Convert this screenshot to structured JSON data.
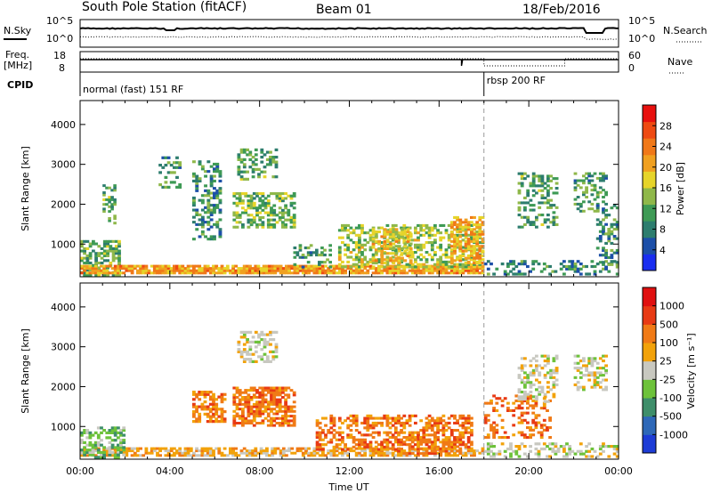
{
  "header": {
    "station": "South Pole Station (fitACF)",
    "beam": "Beam 01",
    "date": "18/Feb/2016"
  },
  "params": {
    "nsky_label": "N.Sky",
    "nsearch_label": "N.Search",
    "freq_label_1": "Freq.",
    "freq_label_2": "[MHz]",
    "nave_label": "Nave",
    "cpid_label": "CPID",
    "nsky_ticks": [
      "10^5",
      "10^0"
    ],
    "nsearch_ticks": [
      "10^5",
      "10^0"
    ],
    "freq_ticks": [
      "18",
      "8"
    ],
    "nave_ticks": [
      "60",
      "0"
    ],
    "modes": [
      {
        "label": "normal (fast) 151 RF",
        "start_hour": 0
      },
      {
        "label": "rbsp 200 RF",
        "start_hour": 18
      }
    ],
    "mode_change_hour": 18
  },
  "chart_data": [
    {
      "type": "heatmap",
      "name": "power",
      "ylabel": "Slant Range [km]",
      "xlabel": "",
      "x_range_hours": [
        0,
        24
      ],
      "ylim": [
        180,
        4600
      ],
      "yticks": [
        1000,
        2000,
        3000,
        4000
      ],
      "colorbar": {
        "label": "Power [dB]",
        "range": [
          0,
          32
        ],
        "ticks": [
          "4",
          "8",
          "12",
          "16",
          "20",
          "24",
          "28"
        ],
        "colors": [
          "#1a2ef0",
          "#1c4fa8",
          "#2d7d6e",
          "#3e9a55",
          "#8fb84a",
          "#e6d42a",
          "#f0a020",
          "#f07818",
          "#ee4a12",
          "#e8100e"
        ]
      },
      "regions": [
        {
          "t": [
            0.0,
            1.8
          ],
          "r": [
            200,
            1100
          ],
          "v": 12,
          "d": 0.6
        },
        {
          "t": [
            0.0,
            18.0
          ],
          "r": [
            250,
            480
          ],
          "v": 22,
          "d": 0.85
        },
        {
          "t": [
            1.0,
            1.6
          ],
          "r": [
            1500,
            2500
          ],
          "v": 11,
          "d": 0.4
        },
        {
          "t": [
            3.5,
            4.5
          ],
          "r": [
            2400,
            3200
          ],
          "v": 10,
          "d": 0.35
        },
        {
          "t": [
            5.0,
            6.3
          ],
          "r": [
            1100,
            3100
          ],
          "v": 9,
          "d": 0.4
        },
        {
          "t": [
            6.8,
            9.6
          ],
          "r": [
            1400,
            2300
          ],
          "v": 13,
          "d": 0.55
        },
        {
          "t": [
            7.0,
            8.8
          ],
          "r": [
            2600,
            3400
          ],
          "v": 11,
          "d": 0.4
        },
        {
          "t": [
            9.5,
            11.2
          ],
          "r": [
            400,
            1000
          ],
          "v": 10,
          "d": 0.3
        },
        {
          "t": [
            11.5,
            18.0
          ],
          "r": [
            400,
            1500
          ],
          "v": 15,
          "d": 0.45
        },
        {
          "t": [
            13.0,
            14.8
          ],
          "r": [
            500,
            1400
          ],
          "v": 19,
          "d": 0.5
        },
        {
          "t": [
            16.5,
            18.0
          ],
          "r": [
            500,
            1700
          ],
          "v": 21,
          "d": 0.6
        },
        {
          "t": [
            18.0,
            24.0
          ],
          "r": [
            220,
            600
          ],
          "v": 8,
          "d": 0.3
        },
        {
          "t": [
            19.5,
            21.3
          ],
          "r": [
            1400,
            2800
          ],
          "v": 11,
          "d": 0.4
        },
        {
          "t": [
            22.0,
            23.5
          ],
          "r": [
            1800,
            2800
          ],
          "v": 10,
          "d": 0.4
        },
        {
          "t": [
            23.0,
            24.0
          ],
          "r": [
            400,
            2000
          ],
          "v": 9,
          "d": 0.35
        }
      ]
    },
    {
      "type": "heatmap",
      "name": "velocity",
      "ylabel": "Slant Range [km]",
      "xlabel": "Time UT",
      "x_range_hours": [
        0,
        24
      ],
      "xticks": [
        "00:00",
        "04:00",
        "08:00",
        "12:00",
        "16:00",
        "20:00",
        "00:00"
      ],
      "ylim": [
        180,
        4600
      ],
      "yticks": [
        1000,
        2000,
        3000,
        4000
      ],
      "colorbar": {
        "label": "Velocity [m s⁻¹]",
        "levels": [
          "1000",
          "500",
          "100",
          "25",
          "-25",
          "-100",
          "-500",
          "-1000"
        ],
        "colors": [
          "#1d3cd6",
          "#2e68b8",
          "#3e8e6a",
          "#6dc23a",
          "#c8c8c0",
          "#f2a20a",
          "#f07a16",
          "#e83a14",
          "#e01010"
        ]
      },
      "regions": [
        {
          "t": [
            0.0,
            18.0
          ],
          "r": [
            250,
            480
          ],
          "v": 5,
          "d": 0.7
        },
        {
          "t": [
            0.0,
            2.0
          ],
          "r": [
            200,
            1000
          ],
          "v": 3,
          "d": 0.45
        },
        {
          "t": [
            5.0,
            6.5
          ],
          "r": [
            1100,
            1900
          ],
          "v": 6,
          "d": 0.55
        },
        {
          "t": [
            6.8,
            9.6
          ],
          "r": [
            1000,
            2000
          ],
          "v": 6,
          "d": 0.6
        },
        {
          "t": [
            7.0,
            8.8
          ],
          "r": [
            2600,
            3400
          ],
          "v": 4,
          "d": 0.4
        },
        {
          "t": [
            10.5,
            17.5
          ],
          "r": [
            400,
            1300
          ],
          "v": 6,
          "d": 0.45
        },
        {
          "t": [
            14.0,
            17.0
          ],
          "r": [
            300,
            700
          ],
          "v": 6,
          "d": 0.55
        },
        {
          "t": [
            18.0,
            24.0
          ],
          "r": [
            220,
            600
          ],
          "v": 4,
          "d": 0.35
        },
        {
          "t": [
            18.0,
            21.0
          ],
          "r": [
            700,
            1800
          ],
          "v": 6,
          "d": 0.35
        },
        {
          "t": [
            19.5,
            21.3
          ],
          "r": [
            1600,
            2800
          ],
          "v": 4,
          "d": 0.35
        },
        {
          "t": [
            22.0,
            23.5
          ],
          "r": [
            1900,
            2800
          ],
          "v": 4,
          "d": 0.4
        }
      ]
    }
  ]
}
